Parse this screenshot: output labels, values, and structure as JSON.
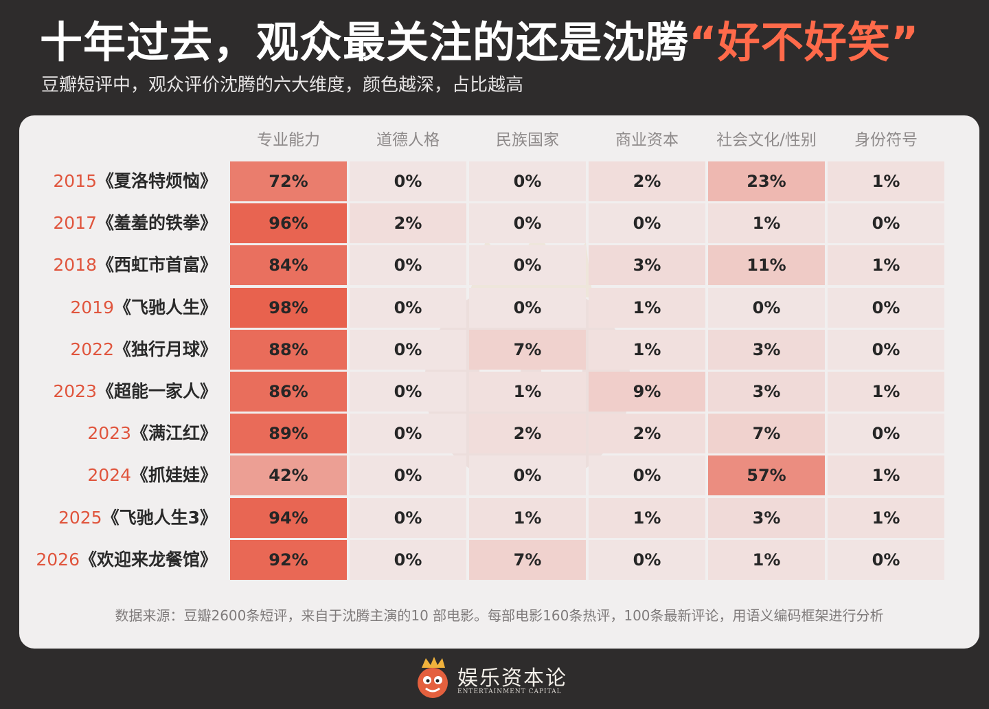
{
  "header": {
    "title_main": "十年过去，观众最关注的还是沈腾",
    "title_highlight": "“好不好笑”",
    "subtitle": "豆瓣短评中，观众评价沈腾的六大维度，颜色越深，占比越高"
  },
  "colors": {
    "accent": "#ff6a4a",
    "year": "#e0553d",
    "cell_low": "#f1e4e3",
    "cell_high": "#e8604c"
  },
  "chart_data": {
    "type": "heatmap",
    "columns": [
      "专业能力",
      "道德人格",
      "民族国家",
      "商业资本",
      "社会文化/性别",
      "身份符号"
    ],
    "rows": [
      {
        "year": "2015",
        "film": "《夏洛特烦恼》",
        "values": [
          72,
          0,
          0,
          2,
          23,
          1
        ]
      },
      {
        "year": "2017",
        "film": "《羞羞的铁拳》",
        "values": [
          96,
          2,
          0,
          0,
          1,
          0
        ]
      },
      {
        "year": "2018",
        "film": "《西虹市首富》",
        "values": [
          84,
          0,
          0,
          3,
          11,
          1
        ]
      },
      {
        "year": "2019",
        "film": "《飞驰人生》",
        "values": [
          98,
          0,
          0,
          1,
          0,
          0
        ]
      },
      {
        "year": "2022",
        "film": "《独行月球》",
        "values": [
          88,
          0,
          7,
          1,
          3,
          0
        ]
      },
      {
        "year": "2023",
        "film": "《超能一家人》",
        "values": [
          86,
          0,
          1,
          9,
          3,
          1
        ]
      },
      {
        "year": "2023",
        "film": "《满江红》",
        "values": [
          89,
          0,
          2,
          2,
          7,
          0
        ]
      },
      {
        "year": "2024",
        "film": "《抓娃娃》",
        "values": [
          42,
          0,
          0,
          0,
          57,
          1
        ]
      },
      {
        "year": "2025",
        "film": "《飞驰人生3》",
        "values": [
          94,
          0,
          1,
          1,
          3,
          1
        ]
      },
      {
        "year": "2026",
        "film": "《欢迎来龙餐馆》",
        "values": [
          92,
          0,
          7,
          0,
          1,
          0
        ]
      }
    ],
    "value_suffix": "%"
  },
  "footer": {
    "source": "数据来源：豆瓣2600条短评，来自于沈腾主演的10 部电影。每部电影160条热评，100条最新评论，用语义编码框架进行分析"
  },
  "brand": {
    "logo_icon": "mascot-crown-icon",
    "name": "娱乐资本论",
    "name_en": "ENTERTAINMENT CAPITAL"
  }
}
